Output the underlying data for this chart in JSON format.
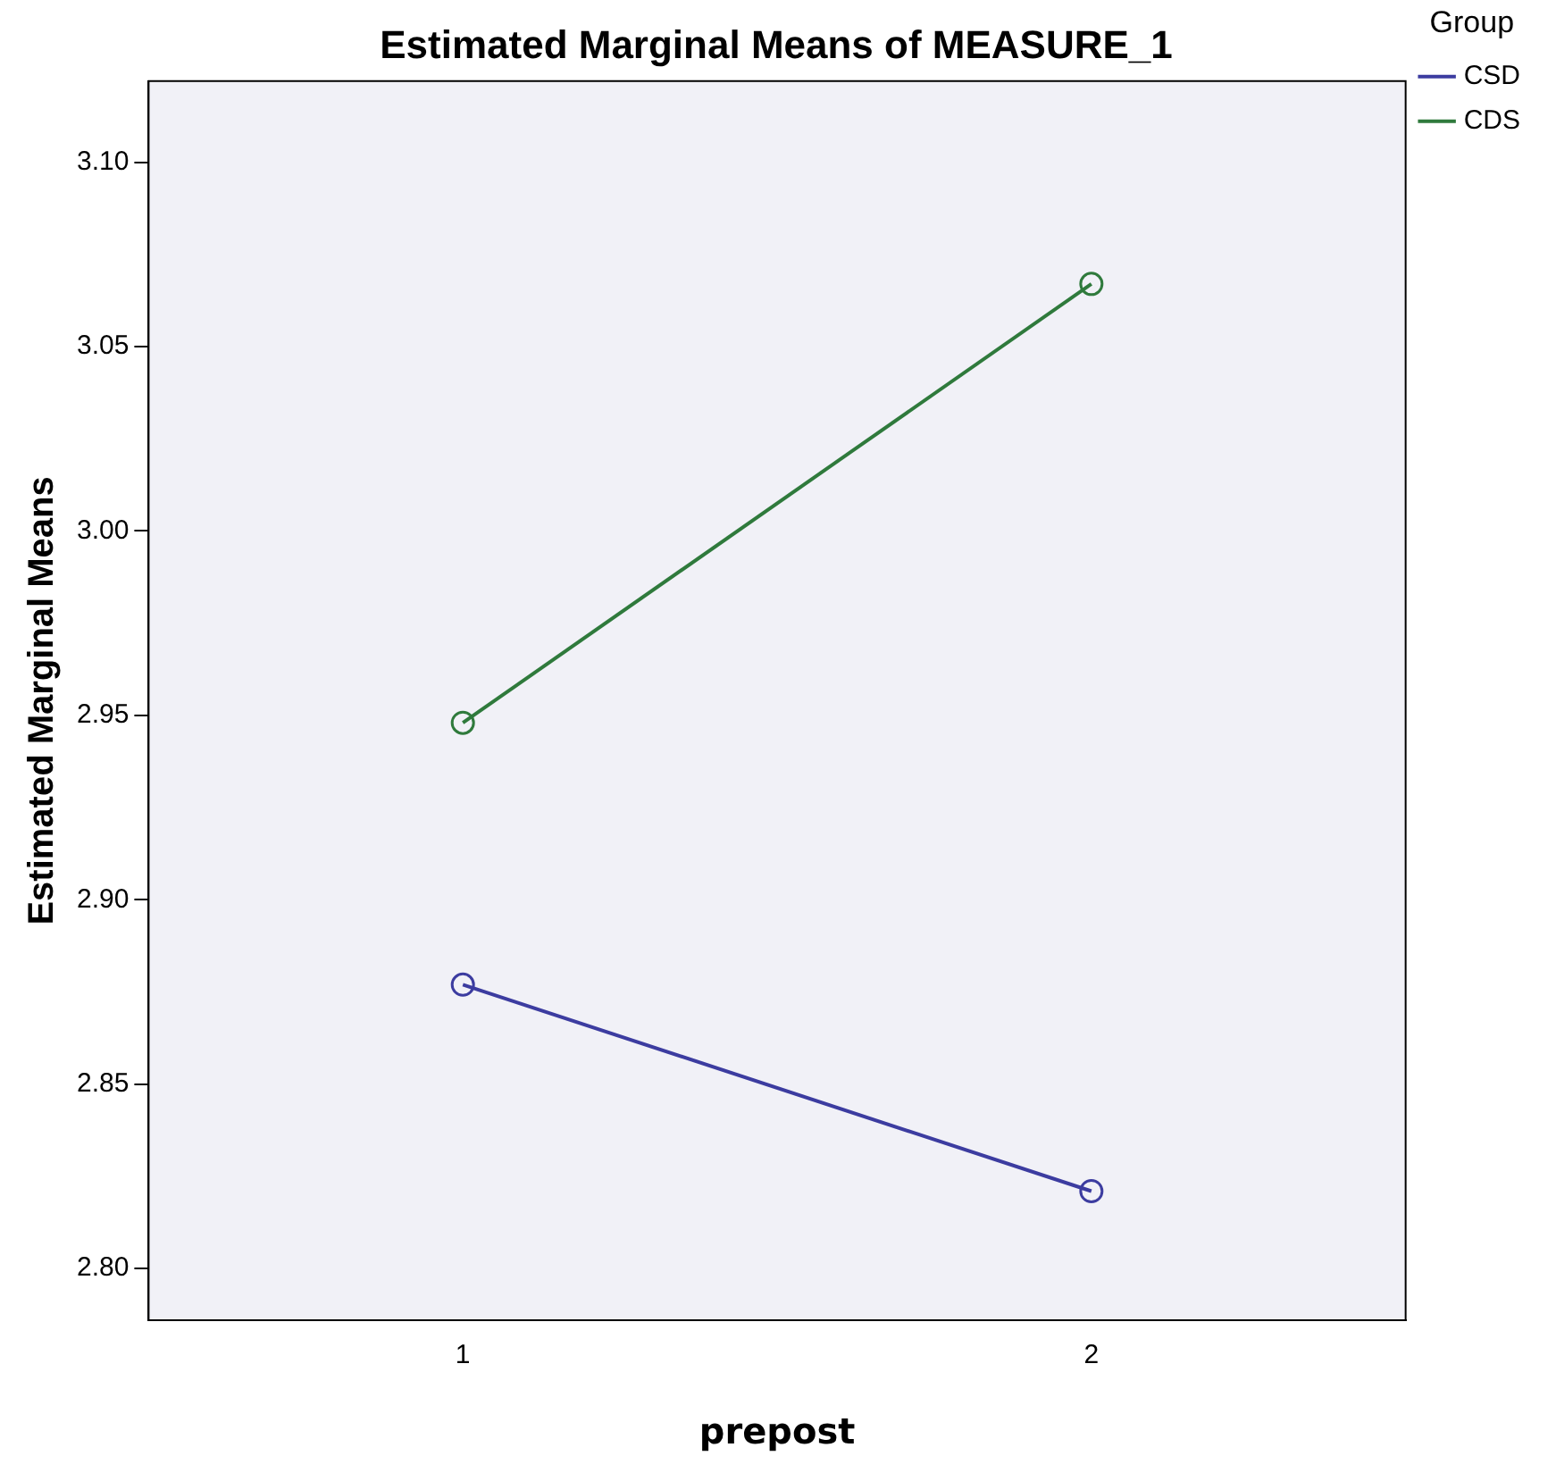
{
  "chart_data": {
    "type": "line",
    "title": "Estimated Marginal Means of MEASURE_1",
    "xlabel": "prepost",
    "ylabel": "Estimated Marginal Means",
    "legend_title": "Group",
    "categories": [
      "1",
      "2"
    ],
    "series": [
      {
        "name": "CSD",
        "color": "#3c3ca0",
        "values": [
          2.877,
          2.821
        ]
      },
      {
        "name": "CDS",
        "color": "#2f7a3c",
        "values": [
          2.948,
          3.067
        ]
      }
    ],
    "ylim": [
      2.786,
      3.122
    ],
    "yticks": [
      {
        "value": 2.8,
        "label": "2.80"
      },
      2.85,
      {
        "value": 2.9,
        "label": "2.90"
      },
      2.95,
      {
        "value": 3.0,
        "label": "3.00"
      },
      3.05,
      {
        "value": 3.1,
        "label": "3.10"
      }
    ],
    "grid": false,
    "legend": "top right",
    "marker": "circle",
    "line_style": "solid"
  }
}
